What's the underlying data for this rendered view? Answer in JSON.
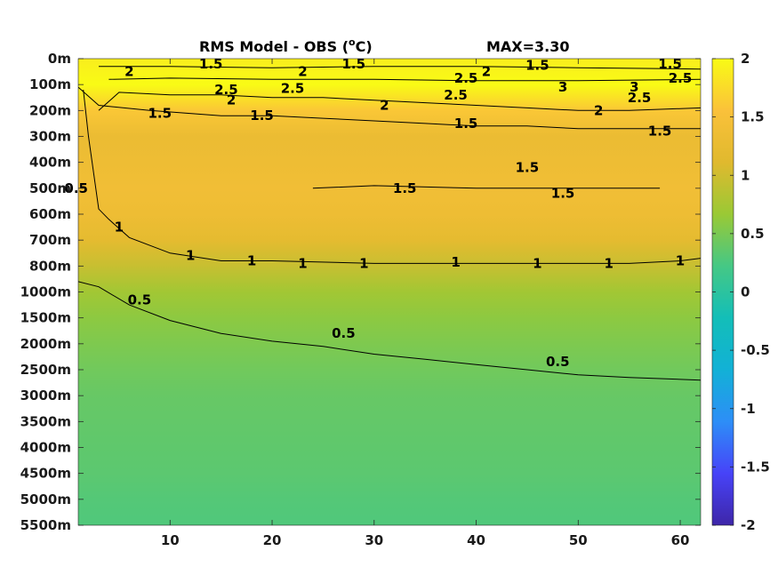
{
  "chart_data": {
    "type": "heatmap",
    "title": "RMS Model - OBS (",
    "title_unit_sup": "o",
    "title_unit_tail": "C)",
    "max_label": "MAX=3.30",
    "x_ticks": [
      10,
      20,
      30,
      40,
      50,
      60
    ],
    "xlim": [
      1,
      62
    ],
    "y_ticks": [
      "0m",
      "100m",
      "200m",
      "300m",
      "400m",
      "500m",
      "600m",
      "700m",
      "800m",
      "1000m",
      "1500m",
      "2000m",
      "2500m",
      "3000m",
      "3500m",
      "4000m",
      "4500m",
      "5000m",
      "5500m"
    ],
    "colorbar_ticks": [
      "2",
      "1.5",
      "1",
      "0.5",
      "0",
      "-0.5",
      "-1",
      "-1.5",
      "-2"
    ],
    "clim": [
      -2,
      2
    ],
    "colormap": [
      "#3e26a8",
      "#4743f8",
      "#2d8ef7",
      "#12b1d6",
      "#13beb8",
      "#45c885",
      "#9ac935",
      "#e0b92e",
      "#fac13a",
      "#f9fb15"
    ],
    "field_rows": [
      {
        "depth_index": 0,
        "value": 1.9
      },
      {
        "depth_index": 1,
        "value": 2.1
      },
      {
        "depth_index": 2,
        "value": 1.6
      },
      {
        "depth_index": 3,
        "value": 1.3
      },
      {
        "depth_index": 4,
        "value": 1.35
      },
      {
        "depth_index": 5,
        "value": 1.4
      },
      {
        "depth_index": 6,
        "value": 1.35
      },
      {
        "depth_index": 7,
        "value": 1.2
      },
      {
        "depth_index": 8,
        "value": 0.95
      },
      {
        "depth_index": 9,
        "value": 0.72
      },
      {
        "depth_index": 10,
        "value": 0.6
      },
      {
        "depth_index": 11,
        "value": 0.52
      },
      {
        "depth_index": 12,
        "value": 0.45
      },
      {
        "depth_index": 13,
        "value": 0.4
      },
      {
        "depth_index": 14,
        "value": 0.38
      },
      {
        "depth_index": 15,
        "value": 0.36
      },
      {
        "depth_index": 16,
        "value": 0.34
      },
      {
        "depth_index": 17,
        "value": 0.3
      },
      {
        "depth_index": 18,
        "value": 0.28
      }
    ],
    "contours": [
      {
        "level": "0.5",
        "points": [
          [
            1,
            8.6
          ],
          [
            3,
            8.8
          ],
          [
            6,
            9.5
          ],
          [
            10,
            10.1
          ],
          [
            15,
            10.6
          ],
          [
            20,
            10.9
          ],
          [
            25,
            11.1
          ],
          [
            30,
            11.4
          ],
          [
            35,
            11.6
          ],
          [
            40,
            11.8
          ],
          [
            45,
            12.0
          ],
          [
            50,
            12.2
          ],
          [
            55,
            12.3
          ],
          [
            62,
            12.4
          ]
        ]
      },
      {
        "level": "1",
        "points": [
          [
            1.5,
            1.2
          ],
          [
            2,
            3.0
          ],
          [
            3,
            5.8
          ],
          [
            4,
            6.2
          ],
          [
            6,
            6.9
          ],
          [
            10,
            7.5
          ],
          [
            15,
            7.8
          ],
          [
            20,
            7.8
          ],
          [
            30,
            7.9
          ],
          [
            40,
            7.9
          ],
          [
            50,
            7.9
          ],
          [
            55,
            7.9
          ],
          [
            60,
            7.8
          ],
          [
            62,
            7.7
          ]
        ]
      },
      {
        "level": "1.5",
        "points": [
          [
            1,
            1.1
          ],
          [
            3,
            1.8
          ],
          [
            8,
            2.0
          ],
          [
            15,
            2.2
          ],
          [
            20,
            2.2
          ],
          [
            25,
            2.3
          ],
          [
            30,
            2.4
          ],
          [
            35,
            2.5
          ],
          [
            40,
            2.6
          ],
          [
            45,
            2.6
          ],
          [
            50,
            2.7
          ],
          [
            55,
            2.7
          ],
          [
            60,
            2.7
          ],
          [
            62,
            2.7
          ]
        ]
      },
      {
        "level": "2",
        "points": [
          [
            3,
            2.0
          ],
          [
            5,
            1.3
          ],
          [
            10,
            1.4
          ],
          [
            15,
            1.4
          ],
          [
            20,
            1.5
          ],
          [
            25,
            1.5
          ],
          [
            30,
            1.6
          ],
          [
            35,
            1.7
          ],
          [
            40,
            1.8
          ],
          [
            45,
            1.9
          ],
          [
            50,
            2.0
          ],
          [
            55,
            2.0
          ],
          [
            62,
            1.9
          ]
        ]
      },
      {
        "level": "2",
        "points": [
          [
            3,
            0.3
          ],
          [
            10,
            0.3
          ],
          [
            20,
            0.35
          ],
          [
            30,
            0.3
          ],
          [
            40,
            0.3
          ],
          [
            50,
            0.35
          ],
          [
            62,
            0.4
          ]
        ]
      },
      {
        "level": "2.5",
        "points": [
          [
            4,
            0.8
          ],
          [
            10,
            0.75
          ],
          [
            20,
            0.8
          ],
          [
            30,
            0.8
          ],
          [
            40,
            0.85
          ],
          [
            50,
            0.85
          ],
          [
            62,
            0.8
          ]
        ]
      },
      {
        "level": "1.5",
        "points": [
          [
            24,
            5.0
          ],
          [
            30,
            4.9
          ],
          [
            40,
            5.0
          ],
          [
            50,
            5.0
          ],
          [
            58,
            5.0
          ]
        ]
      }
    ],
    "contour_labels": [
      {
        "text": "1.5",
        "x": 14,
        "y": 0.2
      },
      {
        "text": "2",
        "x": 6,
        "y": 0.5
      },
      {
        "text": "1.5",
        "x": 28,
        "y": 0.2
      },
      {
        "text": "1.5",
        "x": 46,
        "y": 0.25
      },
      {
        "text": "1.5",
        "x": 59,
        "y": 0.2
      },
      {
        "text": "2",
        "x": 23,
        "y": 0.5
      },
      {
        "text": "2",
        "x": 41,
        "y": 0.5
      },
      {
        "text": "2.5",
        "x": 60,
        "y": 0.75
      },
      {
        "text": "2.5",
        "x": 39,
        "y": 0.75
      },
      {
        "text": "3",
        "x": 48.5,
        "y": 1.1
      },
      {
        "text": "3",
        "x": 55.5,
        "y": 1.1
      },
      {
        "text": "2.5",
        "x": 15.5,
        "y": 1.2
      },
      {
        "text": "2.5",
        "x": 22,
        "y": 1.15
      },
      {
        "text": "2.5",
        "x": 38,
        "y": 1.4
      },
      {
        "text": "2.5",
        "x": 56,
        "y": 1.5
      },
      {
        "text": "2",
        "x": 16,
        "y": 1.6
      },
      {
        "text": "2",
        "x": 31,
        "y": 1.8
      },
      {
        "text": "2",
        "x": 52,
        "y": 2.0
      },
      {
        "text": "1.5",
        "x": 9,
        "y": 2.1
      },
      {
        "text": "1.5",
        "x": 19,
        "y": 2.2
      },
      {
        "text": "1.5",
        "x": 39,
        "y": 2.5
      },
      {
        "text": "1.5",
        "x": 58,
        "y": 2.8
      },
      {
        "text": "1.5",
        "x": 45,
        "y": 4.2
      },
      {
        "text": "1.5",
        "x": 33,
        "y": 5.0
      },
      {
        "text": "1.5",
        "x": 48.5,
        "y": 5.2
      },
      {
        "text": "0.5",
        "x": 0.8,
        "y": 5.0
      },
      {
        "text": "1",
        "x": 5,
        "y": 6.5
      },
      {
        "text": "1",
        "x": 12,
        "y": 7.6
      },
      {
        "text": "1",
        "x": 18,
        "y": 7.8
      },
      {
        "text": "1",
        "x": 23,
        "y": 7.9
      },
      {
        "text": "1",
        "x": 29,
        "y": 7.9
      },
      {
        "text": "1",
        "x": 38,
        "y": 7.85
      },
      {
        "text": "1",
        "x": 46,
        "y": 7.9
      },
      {
        "text": "1",
        "x": 53,
        "y": 7.9
      },
      {
        "text": "1",
        "x": 60,
        "y": 7.8
      },
      {
        "text": "0.5",
        "x": 7,
        "y": 9.3
      },
      {
        "text": "0.5",
        "x": 27,
        "y": 10.6
      },
      {
        "text": "0.5",
        "x": 48,
        "y": 11.7
      }
    ],
    "grid": false,
    "legend": "colorbar-right"
  }
}
